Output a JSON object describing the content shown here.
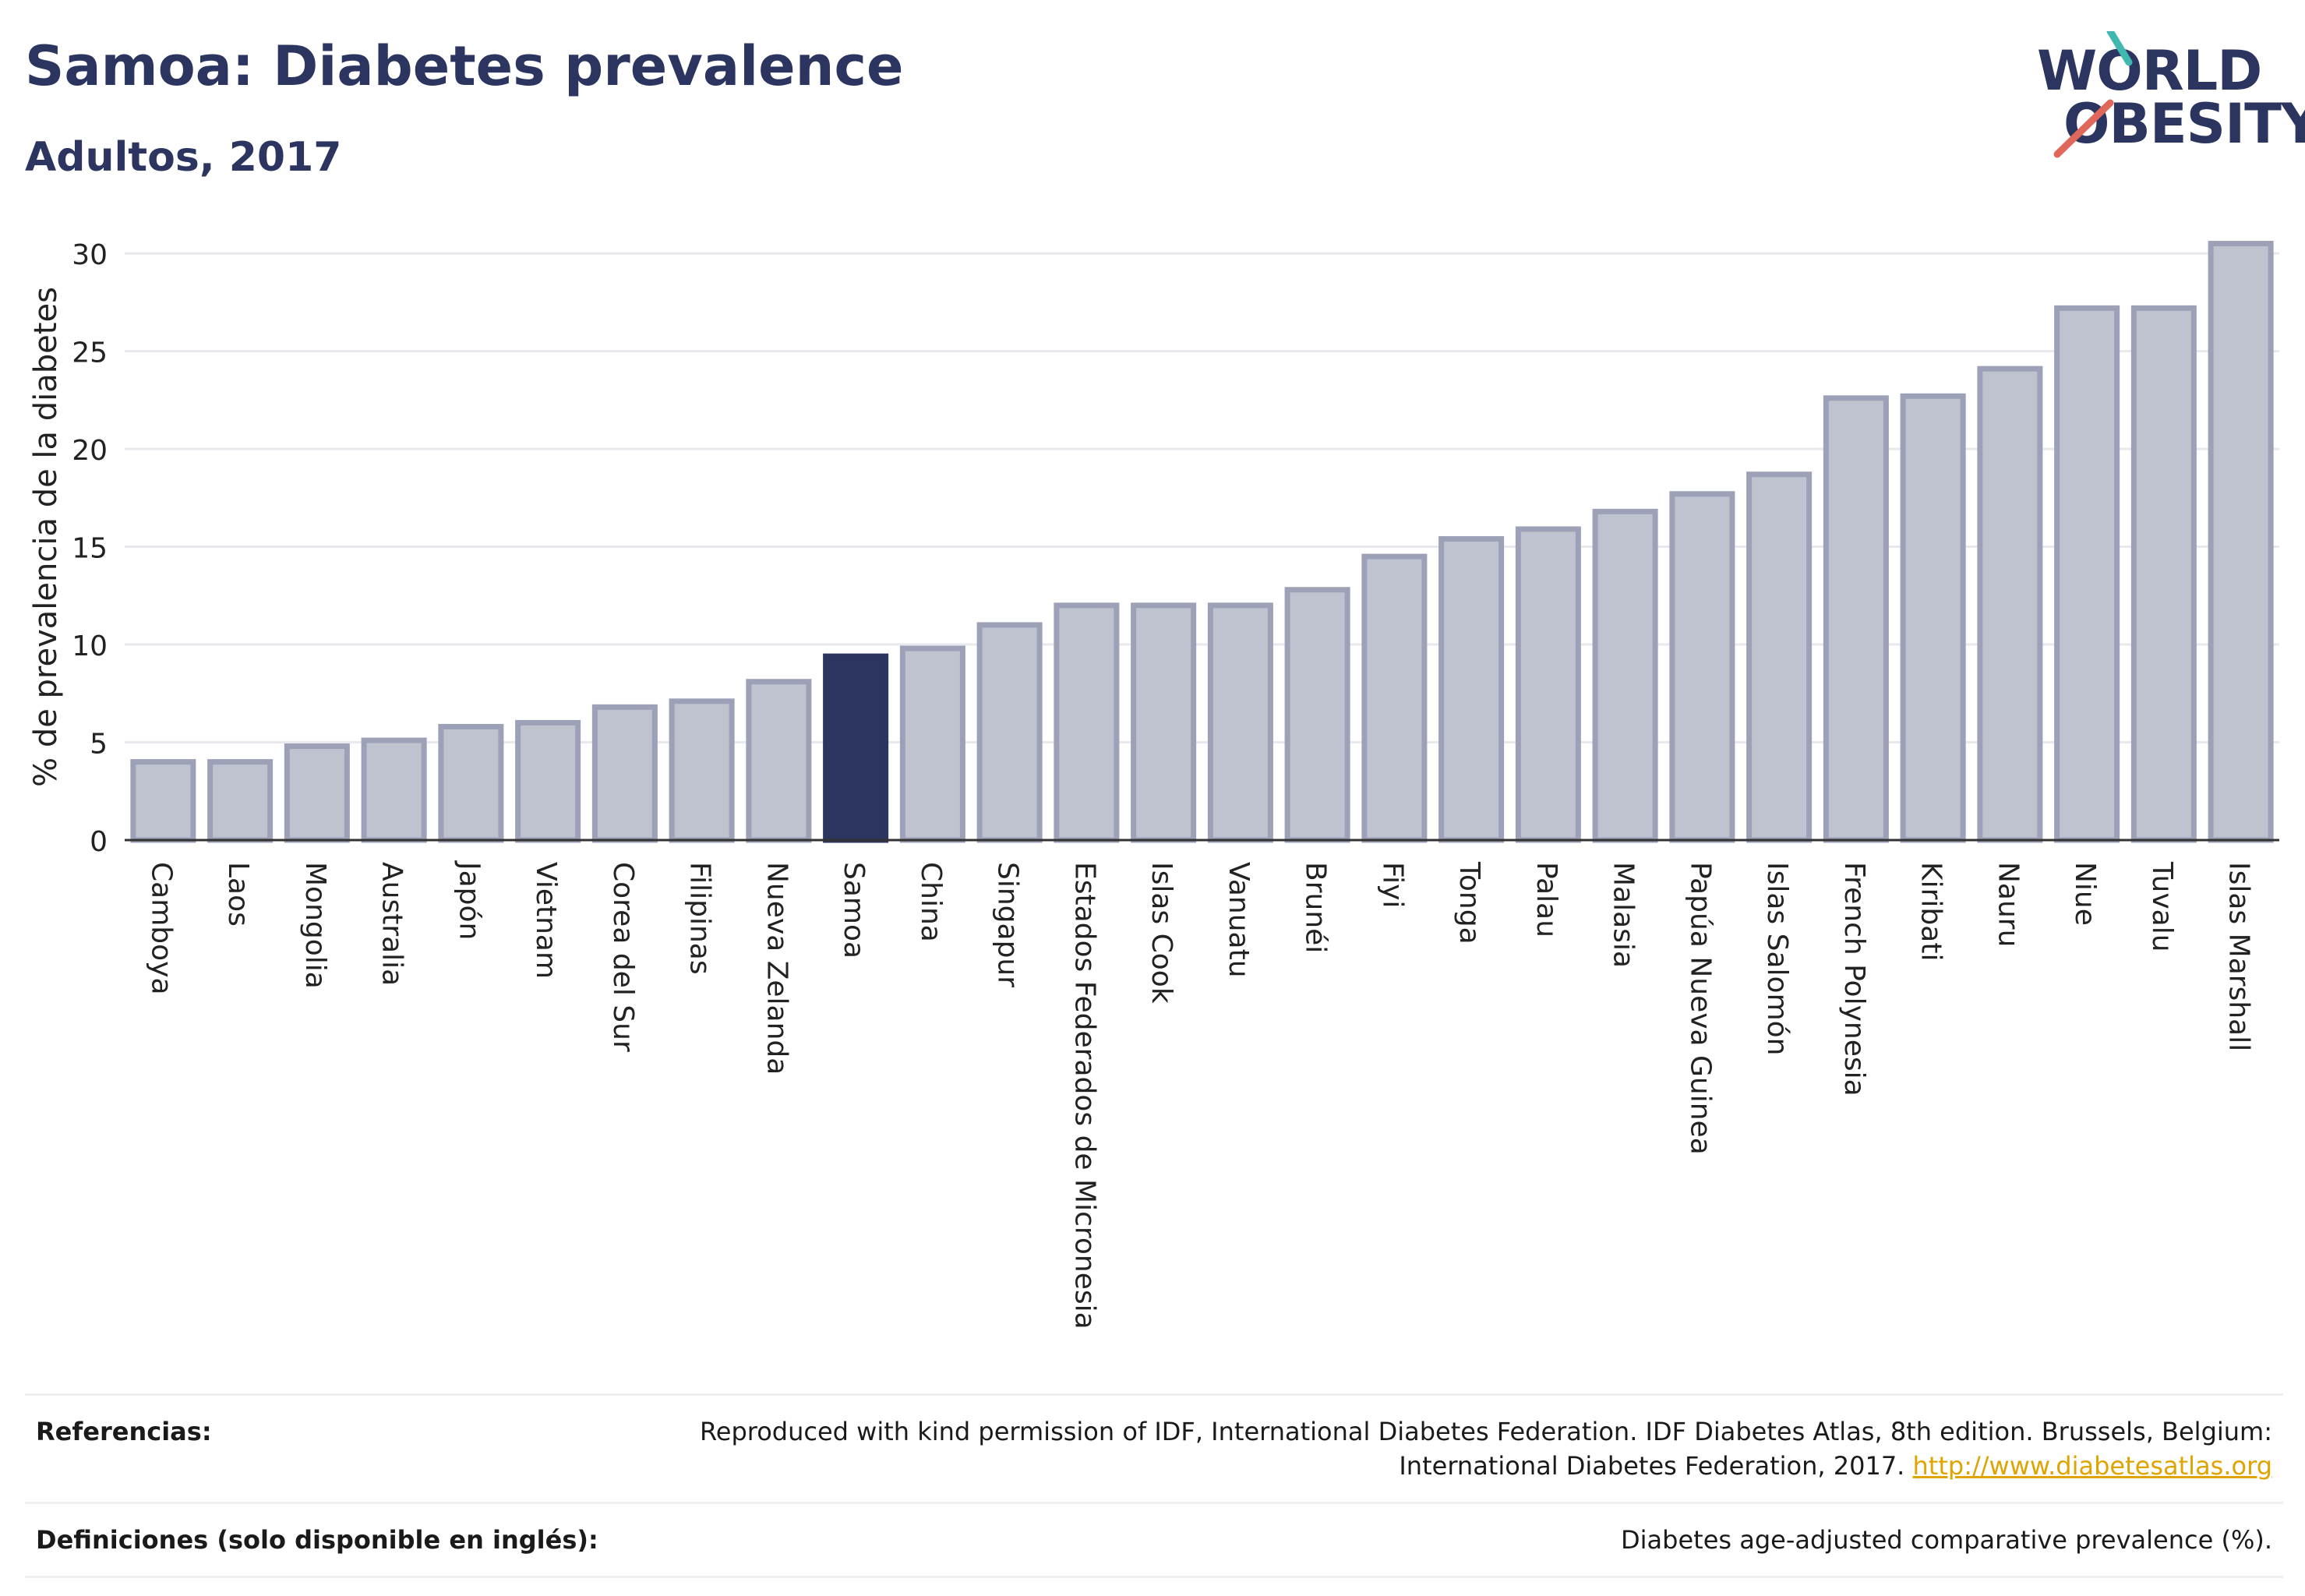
{
  "header": {
    "title": "Samoa: Diabetes prevalence",
    "subtitle": "Adultos, 2017"
  },
  "logo": {
    "line1": "WORLD",
    "line2": "OBESITY",
    "accent_teal": "#3fb8b0",
    "accent_red": "#e0685a"
  },
  "colors": {
    "bar": "#bfc2cf",
    "bar_border": "#9da1b8",
    "highlight": "#2b3560",
    "grid": "#e8e8ee",
    "axis": "#333333"
  },
  "chart_data": {
    "type": "bar",
    "ylabel": "% de prevalencia de la diabetes",
    "ylim": [
      0,
      31
    ],
    "yticks": [
      0,
      5,
      10,
      15,
      20,
      25,
      30
    ],
    "highlight": "Samoa",
    "categories": [
      "Camboya",
      "Laos",
      "Mongolia",
      "Australia",
      "Japón",
      "Vietnam",
      "Corea del Sur",
      "Filipinas",
      "Nueva Zelanda",
      "Samoa",
      "China",
      "Singapur",
      "Estados Federados de Micronesia",
      "Islas Cook",
      "Vanuatu",
      "Brunéi",
      "Fiyi",
      "Tonga",
      "Palau",
      "Malasia",
      "Papúa Nueva Guinea",
      "Islas Salomón",
      "French Polynesia",
      "Kiribati",
      "Nauru",
      "Niue",
      "Tuvalu",
      "Islas Marshall"
    ],
    "values": [
      4.0,
      4.0,
      4.8,
      5.1,
      5.8,
      6.0,
      6.8,
      7.1,
      8.1,
      9.4,
      9.8,
      11.0,
      12.0,
      12.0,
      12.0,
      12.8,
      14.5,
      15.4,
      15.9,
      16.8,
      17.7,
      18.7,
      22.6,
      22.7,
      24.1,
      27.2,
      27.2,
      30.5
    ],
    "grid": true
  },
  "references": {
    "ref_label": "Referencias:",
    "ref_text": "Reproduced with kind permission of IDF, International Diabetes Federation. IDF Diabetes Atlas, 8th edition. Brussels, Belgium:",
    "ref_text2": "International Diabetes Federation, 2017.",
    "ref_link": "http://www.diabetesatlas.org",
    "def_label": "Definiciones (solo disponible en inglés):",
    "def_text": "Diabetes age-adjusted comparative prevalence (%)."
  }
}
